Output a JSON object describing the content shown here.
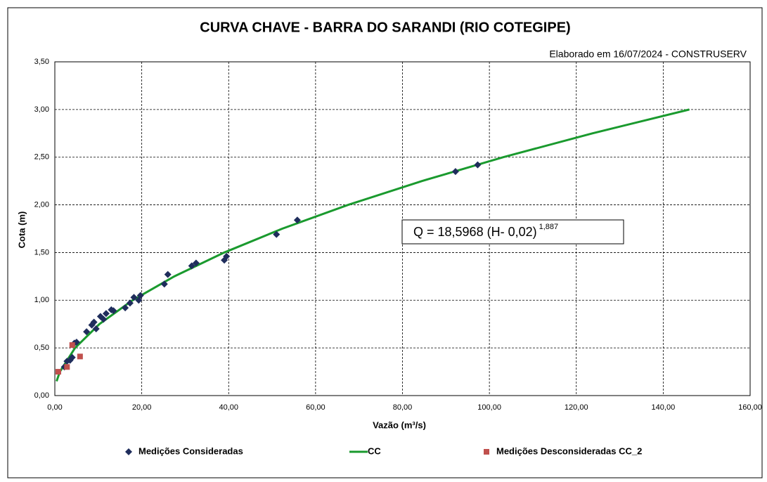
{
  "chart_data": {
    "type": "scatter",
    "title": "CURVA CHAVE - BARRA DO SARANDI (RIO COTEGIPE)",
    "subtitle": "Elaborado em 16/07/2024 -  CONSTRUSERV",
    "equation": {
      "text": "Q = 18,5968  (H- 0,02)",
      "exponent": "1,887"
    },
    "x_label": "Vazão (m³/s)",
    "y_label": "Cota (m)",
    "xlim": [
      0,
      160
    ],
    "ylim": [
      0,
      3.5
    ],
    "xticks": [
      {
        "value": 0,
        "label": "0,00"
      },
      {
        "value": 20,
        "label": "20,00"
      },
      {
        "value": 40,
        "label": "40,00"
      },
      {
        "value": 60,
        "label": "60,00"
      },
      {
        "value": 80,
        "label": "80,00"
      },
      {
        "value": 100,
        "label": "100,00"
      },
      {
        "value": 120,
        "label": "120,00"
      },
      {
        "value": 140,
        "label": "140,00"
      },
      {
        "value": 160,
        "label": "160,00"
      }
    ],
    "yticks": [
      {
        "value": 0,
        "label": "0,00"
      },
      {
        "value": 0.5,
        "label": "0,50"
      },
      {
        "value": 1,
        "label": "1,00"
      },
      {
        "value": 1.5,
        "label": "1,50"
      },
      {
        "value": 2,
        "label": "2,00"
      },
      {
        "value": 2.5,
        "label": "2,50"
      },
      {
        "value": 3,
        "label": "3,00"
      },
      {
        "value": 3.5,
        "label": "3,50"
      }
    ],
    "grid": true,
    "legend": "bottom",
    "series": [
      {
        "name": "Medições Consideradas",
        "color": "#1f2d5c",
        "marker": "diamond",
        "x": [
          2.2,
          2.8,
          3.5,
          4.0,
          4.5,
          5.0,
          7.3,
          8.5,
          9.0,
          9.5,
          10.5,
          11.2,
          11.8,
          13.0,
          13.5,
          16.2,
          17.3,
          18.2,
          19.3,
          19.7,
          25.2,
          26.0,
          31.5,
          32.5,
          39.0,
          39.5,
          51.0,
          55.8,
          92.2,
          97.3
        ],
        "values": [
          0.3,
          0.36,
          0.37,
          0.4,
          0.55,
          0.56,
          0.67,
          0.74,
          0.77,
          0.7,
          0.83,
          0.8,
          0.86,
          0.9,
          0.89,
          0.92,
          0.97,
          1.03,
          1.0,
          1.05,
          1.17,
          1.27,
          1.36,
          1.39,
          1.42,
          1.46,
          1.69,
          1.84,
          2.35,
          2.42
        ]
      },
      {
        "name": "CC",
        "color": "#1a9a2e",
        "marker": "line",
        "x": [
          0.4,
          1.16,
          4.65,
          10.27,
          17.9,
          27.49,
          38.97,
          52.32,
          67.5,
          84.47,
          103.2,
          123.7,
          146.0
        ],
        "values": [
          0.15,
          0.25,
          0.5,
          0.75,
          1.0,
          1.25,
          1.5,
          1.75,
          2.0,
          2.25,
          2.5,
          2.75,
          3.0
        ]
      },
      {
        "name": "Medições Desconsideradas CC_2",
        "color": "#c0504d",
        "marker": "square",
        "x": [
          0.8,
          2.8,
          4.0,
          5.8
        ],
        "values": [
          0.25,
          0.3,
          0.53,
          0.41
        ]
      }
    ]
  }
}
